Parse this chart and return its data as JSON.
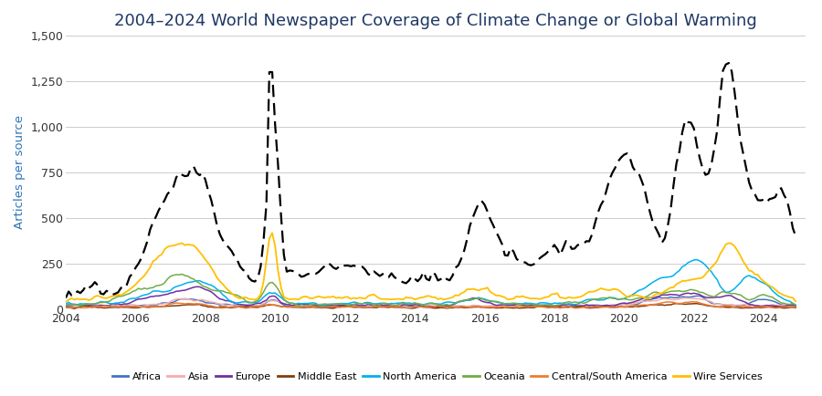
{
  "title": "2004–2024 World Newspaper Coverage of Climate Change or Global Warming",
  "ylabel": "Articles per source",
  "xlim": [
    2004.0,
    2025.2
  ],
  "ylim": [
    0,
    1500
  ],
  "yticks": [
    0,
    250,
    500,
    750,
    1000,
    1250,
    1500
  ],
  "xticks": [
    2004,
    2006,
    2008,
    2010,
    2012,
    2014,
    2016,
    2018,
    2020,
    2022,
    2024
  ],
  "colors": {
    "Africa": "#4472C4",
    "Asia": "#F4AEAB",
    "Europe": "#7030A0",
    "Middle East": "#843C0C",
    "North America": "#00B0F0",
    "Oceania": "#70AD47",
    "Central/South America": "#ED7D31",
    "Wire Services": "#FFC000",
    "All Sources Combined": "#000000"
  },
  "background_color": "#ffffff",
  "title_color": "#1F3864",
  "ylabel_color": "#2E75B6",
  "title_fontsize": 13,
  "label_fontsize": 9.5
}
